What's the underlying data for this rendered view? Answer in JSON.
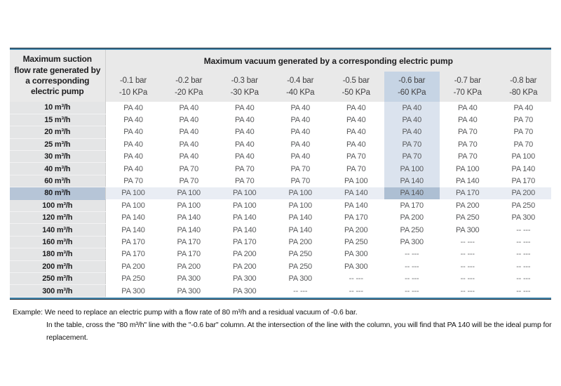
{
  "table": {
    "corner_header": "Maximum suction flow rate generated by a corresponding electric pump",
    "group_header": "Maximum vacuum generated by a corresponding electric pump",
    "columns": [
      {
        "bar": "-0.1 bar",
        "kpa": "-10 KPa"
      },
      {
        "bar": "-0.2 bar",
        "kpa": "-20 KPa"
      },
      {
        "bar": "-0.3 bar",
        "kpa": "-30 KPa"
      },
      {
        "bar": "-0.4 bar",
        "kpa": "-40 KPa"
      },
      {
        "bar": "-0.5 bar",
        "kpa": "-50 KPa"
      },
      {
        "bar": "-0.6 bar",
        "kpa": "-60 KPa"
      },
      {
        "bar": "-0.7 bar",
        "kpa": "-70 KPa"
      },
      {
        "bar": "-0.8 bar",
        "kpa": "-80 KPa"
      }
    ],
    "highlighted_column_index": 5,
    "highlighted_row_index": 7,
    "empty_cell": "-- ---",
    "rows": [
      {
        "label": "10 m³/h",
        "values": [
          "PA 40",
          "PA 40",
          "PA 40",
          "PA 40",
          "PA 40",
          "PA 40",
          "PA 40",
          "PA 40"
        ]
      },
      {
        "label": "15 m³/h",
        "values": [
          "PA 40",
          "PA 40",
          "PA 40",
          "PA 40",
          "PA 40",
          "PA 40",
          "PA 40",
          "PA 70"
        ]
      },
      {
        "label": "20 m³/h",
        "values": [
          "PA 40",
          "PA 40",
          "PA 40",
          "PA 40",
          "PA 40",
          "PA 40",
          "PA 70",
          "PA 70"
        ]
      },
      {
        "label": "25 m³/h",
        "values": [
          "PA 40",
          "PA 40",
          "PA 40",
          "PA 40",
          "PA 40",
          "PA 70",
          "PA 70",
          "PA 70"
        ]
      },
      {
        "label": "30 m³/h",
        "values": [
          "PA 40",
          "PA 40",
          "PA 40",
          "PA 40",
          "PA 70",
          "PA 70",
          "PA 70",
          "PA 100"
        ]
      },
      {
        "label": "40 m³/h",
        "values": [
          "PA 40",
          "PA 70",
          "PA 70",
          "PA 70",
          "PA 70",
          "PA 100",
          "PA 100",
          "PA 140"
        ]
      },
      {
        "label": "60 m³/h",
        "values": [
          "PA 70",
          "PA 70",
          "PA 70",
          "PA 70",
          "PA 100",
          "PA 140",
          "PA 140",
          "PA 170"
        ]
      },
      {
        "label": "80 m³/h",
        "values": [
          "PA 100",
          "PA 100",
          "PA 100",
          "PA 100",
          "PA 140",
          "PA 140",
          "PA 170",
          "PA 200"
        ]
      },
      {
        "label": "100 m³/h",
        "values": [
          "PA 100",
          "PA 100",
          "PA 100",
          "PA 100",
          "PA 140",
          "PA 170",
          "PA 200",
          "PA 250"
        ]
      },
      {
        "label": "120 m³/h",
        "values": [
          "PA 140",
          "PA 140",
          "PA 140",
          "PA 140",
          "PA 170",
          "PA 200",
          "PA 250",
          "PA 300"
        ]
      },
      {
        "label": "140 m³/h",
        "values": [
          "PA 140",
          "PA 140",
          "PA 140",
          "PA 140",
          "PA 200",
          "PA 250",
          "PA 300",
          "-- ---"
        ]
      },
      {
        "label": "160 m³/h",
        "values": [
          "PA 170",
          "PA 170",
          "PA 170",
          "PA 200",
          "PA 250",
          "PA 300",
          "-- ---",
          "-- ---"
        ]
      },
      {
        "label": "180 m³/h",
        "values": [
          "PA 170",
          "PA 170",
          "PA 200",
          "PA 250",
          "PA 300",
          "-- ---",
          "-- ---",
          "-- ---"
        ]
      },
      {
        "label": "200 m³/h",
        "values": [
          "PA 200",
          "PA 200",
          "PA 200",
          "PA 250",
          "PA 300",
          "-- ---",
          "-- ---",
          "-- ---"
        ]
      },
      {
        "label": "250 m³/h",
        "values": [
          "PA 250",
          "PA 300",
          "PA 300",
          "PA 300",
          "-- ---",
          "-- ---",
          "-- ---",
          "-- ---"
        ]
      },
      {
        "label": "300 m³/h",
        "values": [
          "PA 300",
          "PA 300",
          "PA 300",
          "-- ---",
          "-- ---",
          "-- ---",
          "-- ---",
          "-- ---"
        ]
      }
    ]
  },
  "footer": {
    "line1": "Example: We need to replace an electric pump with a flow rate of 80 m³/h and a residual vacuum of -0.6 bar.",
    "line2": "In the table, cross the \"80 m³/h\" line with the \"-0.6 bar\" column. At the intersection of the line with the column, you will find that PA 140 will be the ideal pump for replacement."
  },
  "colors": {
    "accent_blue_line": "#4285ab",
    "dark_line": "#1b2630",
    "header_bg": "#e9e9e9",
    "label_column_bg": "#e4e5e6",
    "column_highlight_header": "#c6d4e4",
    "column_highlight_body": "#dbe3ee",
    "row_highlight": "#e9edf4",
    "intersection_highlight": "#adbfd3",
    "row_label_highlight": "#b6c5d7"
  }
}
